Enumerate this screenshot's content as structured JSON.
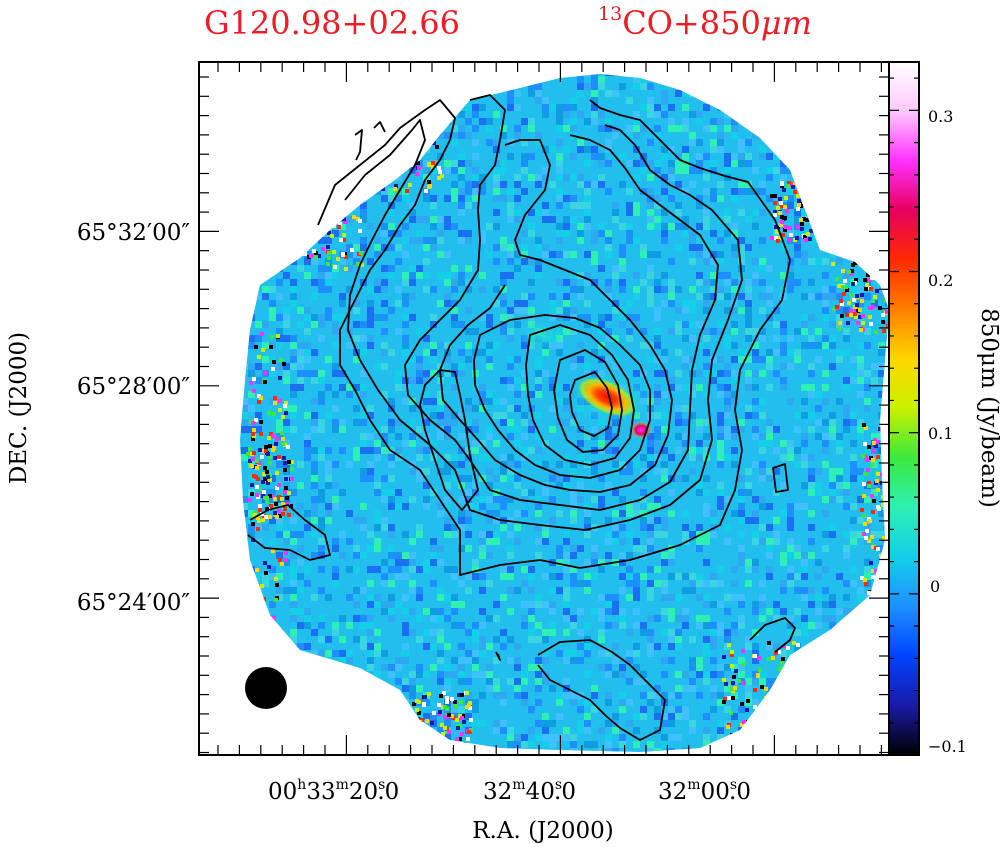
{
  "header": {
    "source_name": "G120.98+02.66",
    "overlay_label_superscript": "13",
    "overlay_label_main": "CO+850",
    "overlay_label_mu": "μm"
  },
  "x_axis": {
    "label": "R.A.  (J2000)",
    "ticks": [
      {
        "hh": "00",
        "mm": "33",
        "ss": "20",
        "frac": ".0",
        "value": "00h33m20.0s"
      },
      {
        "hh": "",
        "mm": "32",
        "ss": "40",
        "frac": ".0",
        "value": "32m40.0s"
      },
      {
        "hh": "",
        "mm": "32",
        "ss": "00",
        "frac": ".0",
        "value": "32m00.0s"
      }
    ]
  },
  "y_axis": {
    "label": "DEC.  (J2000)",
    "ticks": [
      "65°32′00″",
      "65°28′00″",
      "65°24′00″"
    ]
  },
  "colorbar": {
    "label": "850μm  (Jy/beam)",
    "ticks": [
      "0.3",
      "0.2",
      "0.1",
      "0",
      "−0.1"
    ],
    "range": [
      -0.1,
      0.33
    ],
    "stops": [
      "#000000",
      "#1a1aa8",
      "#0044ff",
      "#1e8fff",
      "#14cfe8",
      "#2ef0b4",
      "#3ce83c",
      "#c8f000",
      "#ffd700",
      "#ff7f00",
      "#ff2a00",
      "#e80060",
      "#ff30ff",
      "#ffc8ff",
      "#ffffff"
    ]
  },
  "legend": {
    "beam_symbol": "beam"
  },
  "colors": {
    "title": "#ee1c24",
    "background_map": "#1ec0ee",
    "contours": "#000000"
  }
}
